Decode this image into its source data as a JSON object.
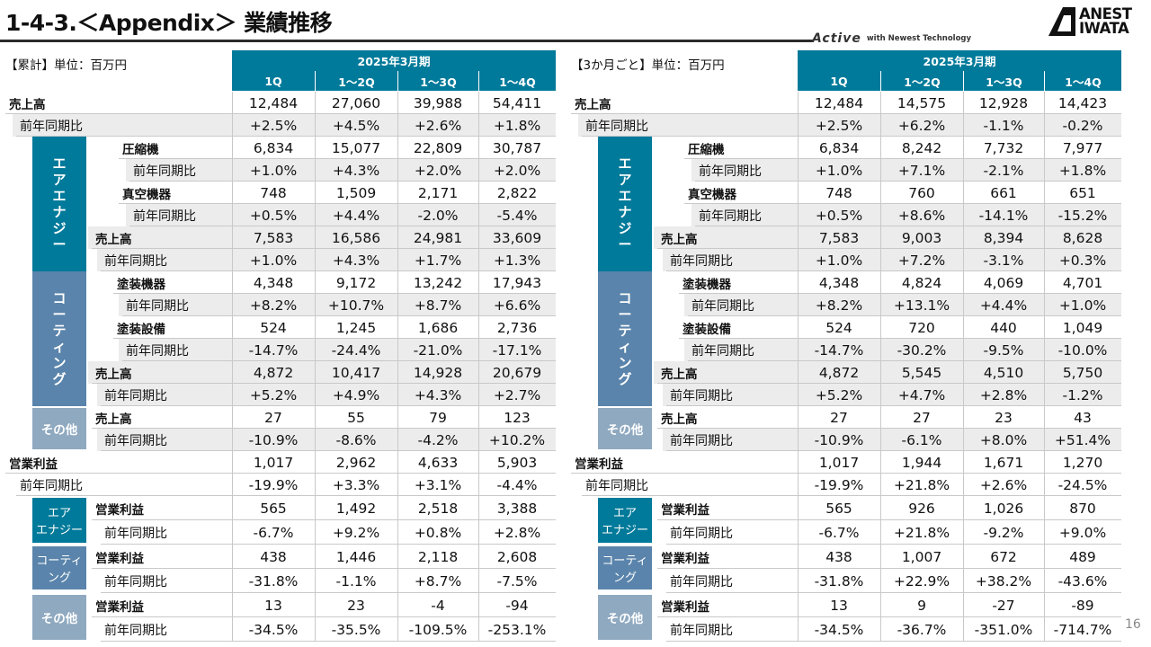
{
  "title": "1-4-3.＜Appendix＞ 業績推移",
  "tagline": {
    "brand": "Active",
    "text": "with Newest Technology"
  },
  "logo": {
    "line1": "ANEST",
    "line2": "IWATA"
  },
  "page_number": "16",
  "left": {
    "unit_label": "【累計】単位：百万円",
    "period": "2025年3月期",
    "quarters": [
      "1Q",
      "1～2Q",
      "1～3Q",
      "1～4Q"
    ],
    "rows": [
      [
        "12,484",
        "27,060",
        "39,988",
        "54,411"
      ],
      [
        "+2.5%",
        "+4.5%",
        "+2.6%",
        "+1.8%"
      ],
      [
        "6,834",
        "15,077",
        "22,809",
        "30,787"
      ],
      [
        "+1.0%",
        "+4.3%",
        "+2.0%",
        "+2.0%"
      ],
      [
        "748",
        "1,509",
        "2,171",
        "2,822"
      ],
      [
        "+0.5%",
        "+4.4%",
        "-2.0%",
        "-5.4%"
      ],
      [
        "7,583",
        "16,586",
        "24,981",
        "33,609"
      ],
      [
        "+1.0%",
        "+4.3%",
        "+1.7%",
        "+1.3%"
      ],
      [
        "4,348",
        "9,172",
        "13,242",
        "17,943"
      ],
      [
        "+8.2%",
        "+10.7%",
        "+8.7%",
        "+6.6%"
      ],
      [
        "524",
        "1,245",
        "1,686",
        "2,736"
      ],
      [
        "-14.7%",
        "-24.4%",
        "-21.0%",
        "-17.1%"
      ],
      [
        "4,872",
        "10,417",
        "14,928",
        "20,679"
      ],
      [
        "+5.2%",
        "+4.9%",
        "+4.3%",
        "+2.7%"
      ],
      [
        "27",
        "55",
        "79",
        "123"
      ],
      [
        "-10.9%",
        "-8.6%",
        "-4.2%",
        "+10.2%"
      ],
      [
        "1,017",
        "2,962",
        "4,633",
        "5,903"
      ],
      [
        "-19.9%",
        "+3.3%",
        "+3.1%",
        "-4.4%"
      ],
      [
        "565",
        "1,492",
        "2,518",
        "3,388"
      ],
      [
        "-6.7%",
        "+9.2%",
        "+0.8%",
        "+2.8%"
      ],
      [
        "438",
        "1,446",
        "2,118",
        "2,608"
      ],
      [
        "-31.8%",
        "-1.1%",
        "+8.7%",
        "-7.5%"
      ],
      [
        "13",
        "23",
        "-4",
        "-94"
      ],
      [
        "-34.5%",
        "-35.5%",
        "-109.5%",
        "-253.1%"
      ]
    ]
  },
  "right": {
    "unit_label": "【3か月ごと】単位：百万円",
    "period": "2025年3月期",
    "quarters": [
      "1Q",
      "1～2Q",
      "1～3Q",
      "1～4Q"
    ],
    "rows": [
      [
        "12,484",
        "14,575",
        "12,928",
        "14,423"
      ],
      [
        "+2.5%",
        "+6.2%",
        "-1.1%",
        "-0.2%"
      ],
      [
        "6,834",
        "8,242",
        "7,732",
        "7,977"
      ],
      [
        "+1.0%",
        "+7.1%",
        "-2.1%",
        "+1.8%"
      ],
      [
        "748",
        "760",
        "661",
        "651"
      ],
      [
        "+0.5%",
        "+8.6%",
        "-14.1%",
        "-15.2%"
      ],
      [
        "7,583",
        "9,003",
        "8,394",
        "8,628"
      ],
      [
        "+1.0%",
        "+7.2%",
        "-3.1%",
        "+0.3%"
      ],
      [
        "4,348",
        "4,824",
        "4,069",
        "4,701"
      ],
      [
        "+8.2%",
        "+13.1%",
        "+4.4%",
        "+1.0%"
      ],
      [
        "524",
        "720",
        "440",
        "1,049"
      ],
      [
        "-14.7%",
        "-30.2%",
        "-9.5%",
        "-10.0%"
      ],
      [
        "4,872",
        "5,545",
        "4,510",
        "5,750"
      ],
      [
        "+5.2%",
        "+4.7%",
        "+2.8%",
        "-1.2%"
      ],
      [
        "27",
        "27",
        "23",
        "43"
      ],
      [
        "-10.9%",
        "-6.1%",
        "+8.0%",
        "+51.4%"
      ],
      [
        "1,017",
        "1,944",
        "1,671",
        "1,270"
      ],
      [
        "-19.9%",
        "+21.8%",
        "+2.6%",
        "-24.5%"
      ],
      [
        "565",
        "926",
        "1,026",
        "870"
      ],
      [
        "-6.7%",
        "+21.8%",
        "-9.2%",
        "+9.0%"
      ],
      [
        "438",
        "1,007",
        "672",
        "489"
      ],
      [
        "-31.8%",
        "+22.9%",
        "+38.2%",
        "-43.6%"
      ],
      [
        "13",
        "9",
        "-27",
        "-89"
      ],
      [
        "-34.5%",
        "-36.7%",
        "-351.0%",
        "-714.7%"
      ]
    ]
  },
  "labels": {
    "sales": "売上高",
    "yoy": "前年同期比",
    "compressor": "圧縮機",
    "vacuum": "真空機器",
    "coating_eq": "塗装機器",
    "coating_sys": "塗装設備",
    "op_profit": "営業利益"
  },
  "categories": {
    "air_energy_v": [
      "エ",
      "ア",
      "エ",
      "ナ",
      "ジ",
      "ー"
    ],
    "coating_v": [
      "コ",
      "ー",
      "テ",
      "ィ",
      "ン",
      "グ"
    ],
    "other": "その他",
    "air_energy_2": [
      "エア",
      "エナジー"
    ],
    "coating_2": [
      "コーティ",
      "ング"
    ]
  }
}
